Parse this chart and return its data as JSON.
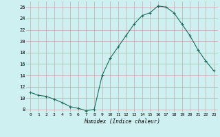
{
  "x": [
    0,
    1,
    2,
    3,
    4,
    5,
    6,
    7,
    8,
    9,
    10,
    11,
    12,
    13,
    14,
    15,
    16,
    17,
    18,
    19,
    20,
    21,
    22,
    23
  ],
  "y": [
    11,
    10.5,
    10.3,
    9.8,
    9.2,
    8.5,
    8.2,
    7.8,
    8.0,
    14.0,
    17.0,
    19.0,
    21.0,
    23.0,
    24.5,
    25.0,
    26.2,
    26.0,
    25.0,
    23.0,
    21.0,
    18.5,
    16.5,
    14.8
  ],
  "xlabel": "Humidex (Indice chaleur)",
  "ylim": [
    7.5,
    27
  ],
  "xlim": [
    -0.5,
    23.5
  ],
  "yticks": [
    8,
    10,
    12,
    14,
    16,
    18,
    20,
    22,
    24,
    26
  ],
  "xticks": [
    0,
    1,
    2,
    3,
    4,
    5,
    6,
    7,
    8,
    9,
    10,
    11,
    12,
    13,
    14,
    15,
    16,
    17,
    18,
    19,
    20,
    21,
    22,
    23
  ],
  "line_color": "#1a6b5a",
  "marker": "+",
  "bg_color": "#cff0f0",
  "grid_color_major": "#c8a8a8",
  "grid_color_minor": "#d8c0c0"
}
